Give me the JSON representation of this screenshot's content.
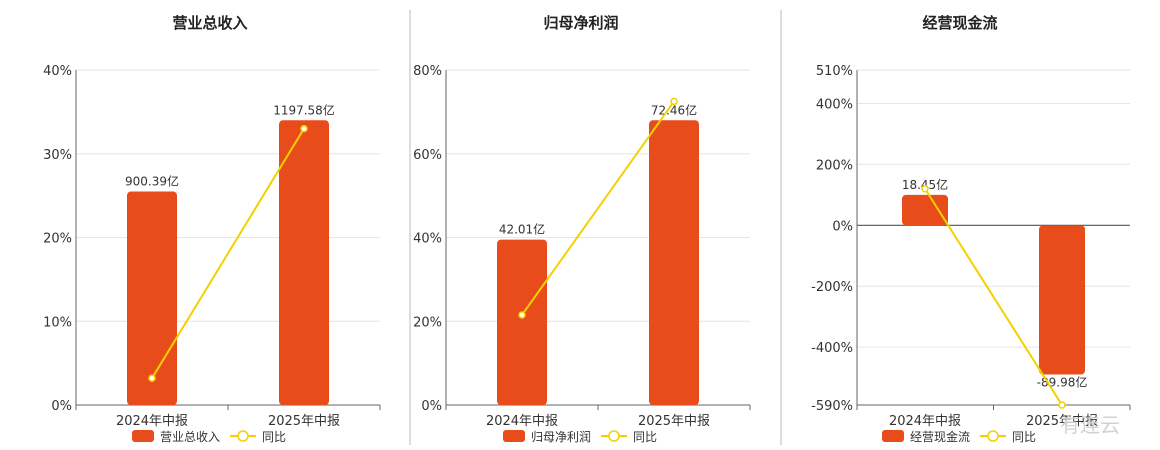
{
  "watermark": "有连云",
  "colors": {
    "bar": "#e84c1a",
    "line": "#f5d000",
    "grid": "#e6e6e6",
    "axis": "#666666",
    "divider": "#bbbbbb"
  },
  "chart_data": [
    {
      "type": "bar",
      "title": "营业总收入",
      "categories": [
        "2024年中报",
        "2025年中报"
      ],
      "series": [
        {
          "name": "营业总收入",
          "type": "bar",
          "values": [
            25.5,
            34.0
          ],
          "labels": [
            "900.39亿",
            "1197.58亿"
          ]
        },
        {
          "name": "同比",
          "type": "line",
          "values": [
            3.2,
            33.0
          ]
        }
      ],
      "ylim": [
        0,
        40
      ],
      "yticks": [
        "0%",
        "10%",
        "20%",
        "30%",
        "40%"
      ],
      "ytick_values": [
        0,
        10,
        20,
        30,
        40
      ],
      "grid": true,
      "legend_position": "bottom"
    },
    {
      "type": "bar",
      "title": "归母净利润",
      "categories": [
        "2024年中报",
        "2025年中报"
      ],
      "series": [
        {
          "name": "归母净利润",
          "type": "bar",
          "values": [
            39.5,
            68.0
          ],
          "labels": [
            "42.01亿",
            "72.46亿"
          ]
        },
        {
          "name": "同比",
          "type": "line",
          "values": [
            21.5,
            72.5
          ]
        }
      ],
      "ylim": [
        0,
        80
      ],
      "yticks": [
        "0%",
        "20%",
        "40%",
        "60%",
        "80%"
      ],
      "ytick_values": [
        0,
        20,
        40,
        60,
        80
      ],
      "grid": true,
      "legend_position": "bottom"
    },
    {
      "type": "bar",
      "title": "经营现金流",
      "categories": [
        "2024年中报",
        "2025年中报"
      ],
      "series": [
        {
          "name": "经营现金流",
          "type": "bar",
          "values": [
            100,
            -490
          ],
          "labels": [
            "18.45亿",
            "-89.98亿"
          ]
        },
        {
          "name": "同比",
          "type": "line",
          "values": [
            120,
            -590
          ]
        }
      ],
      "ylim": [
        -590,
        510
      ],
      "yticks": [
        "-590%",
        "-400%",
        "-200%",
        "0%",
        "200%",
        "400%",
        "510%"
      ],
      "ytick_values": [
        -590,
        -400,
        -200,
        0,
        200,
        400,
        510
      ],
      "grid": true,
      "legend_position": "bottom"
    }
  ]
}
